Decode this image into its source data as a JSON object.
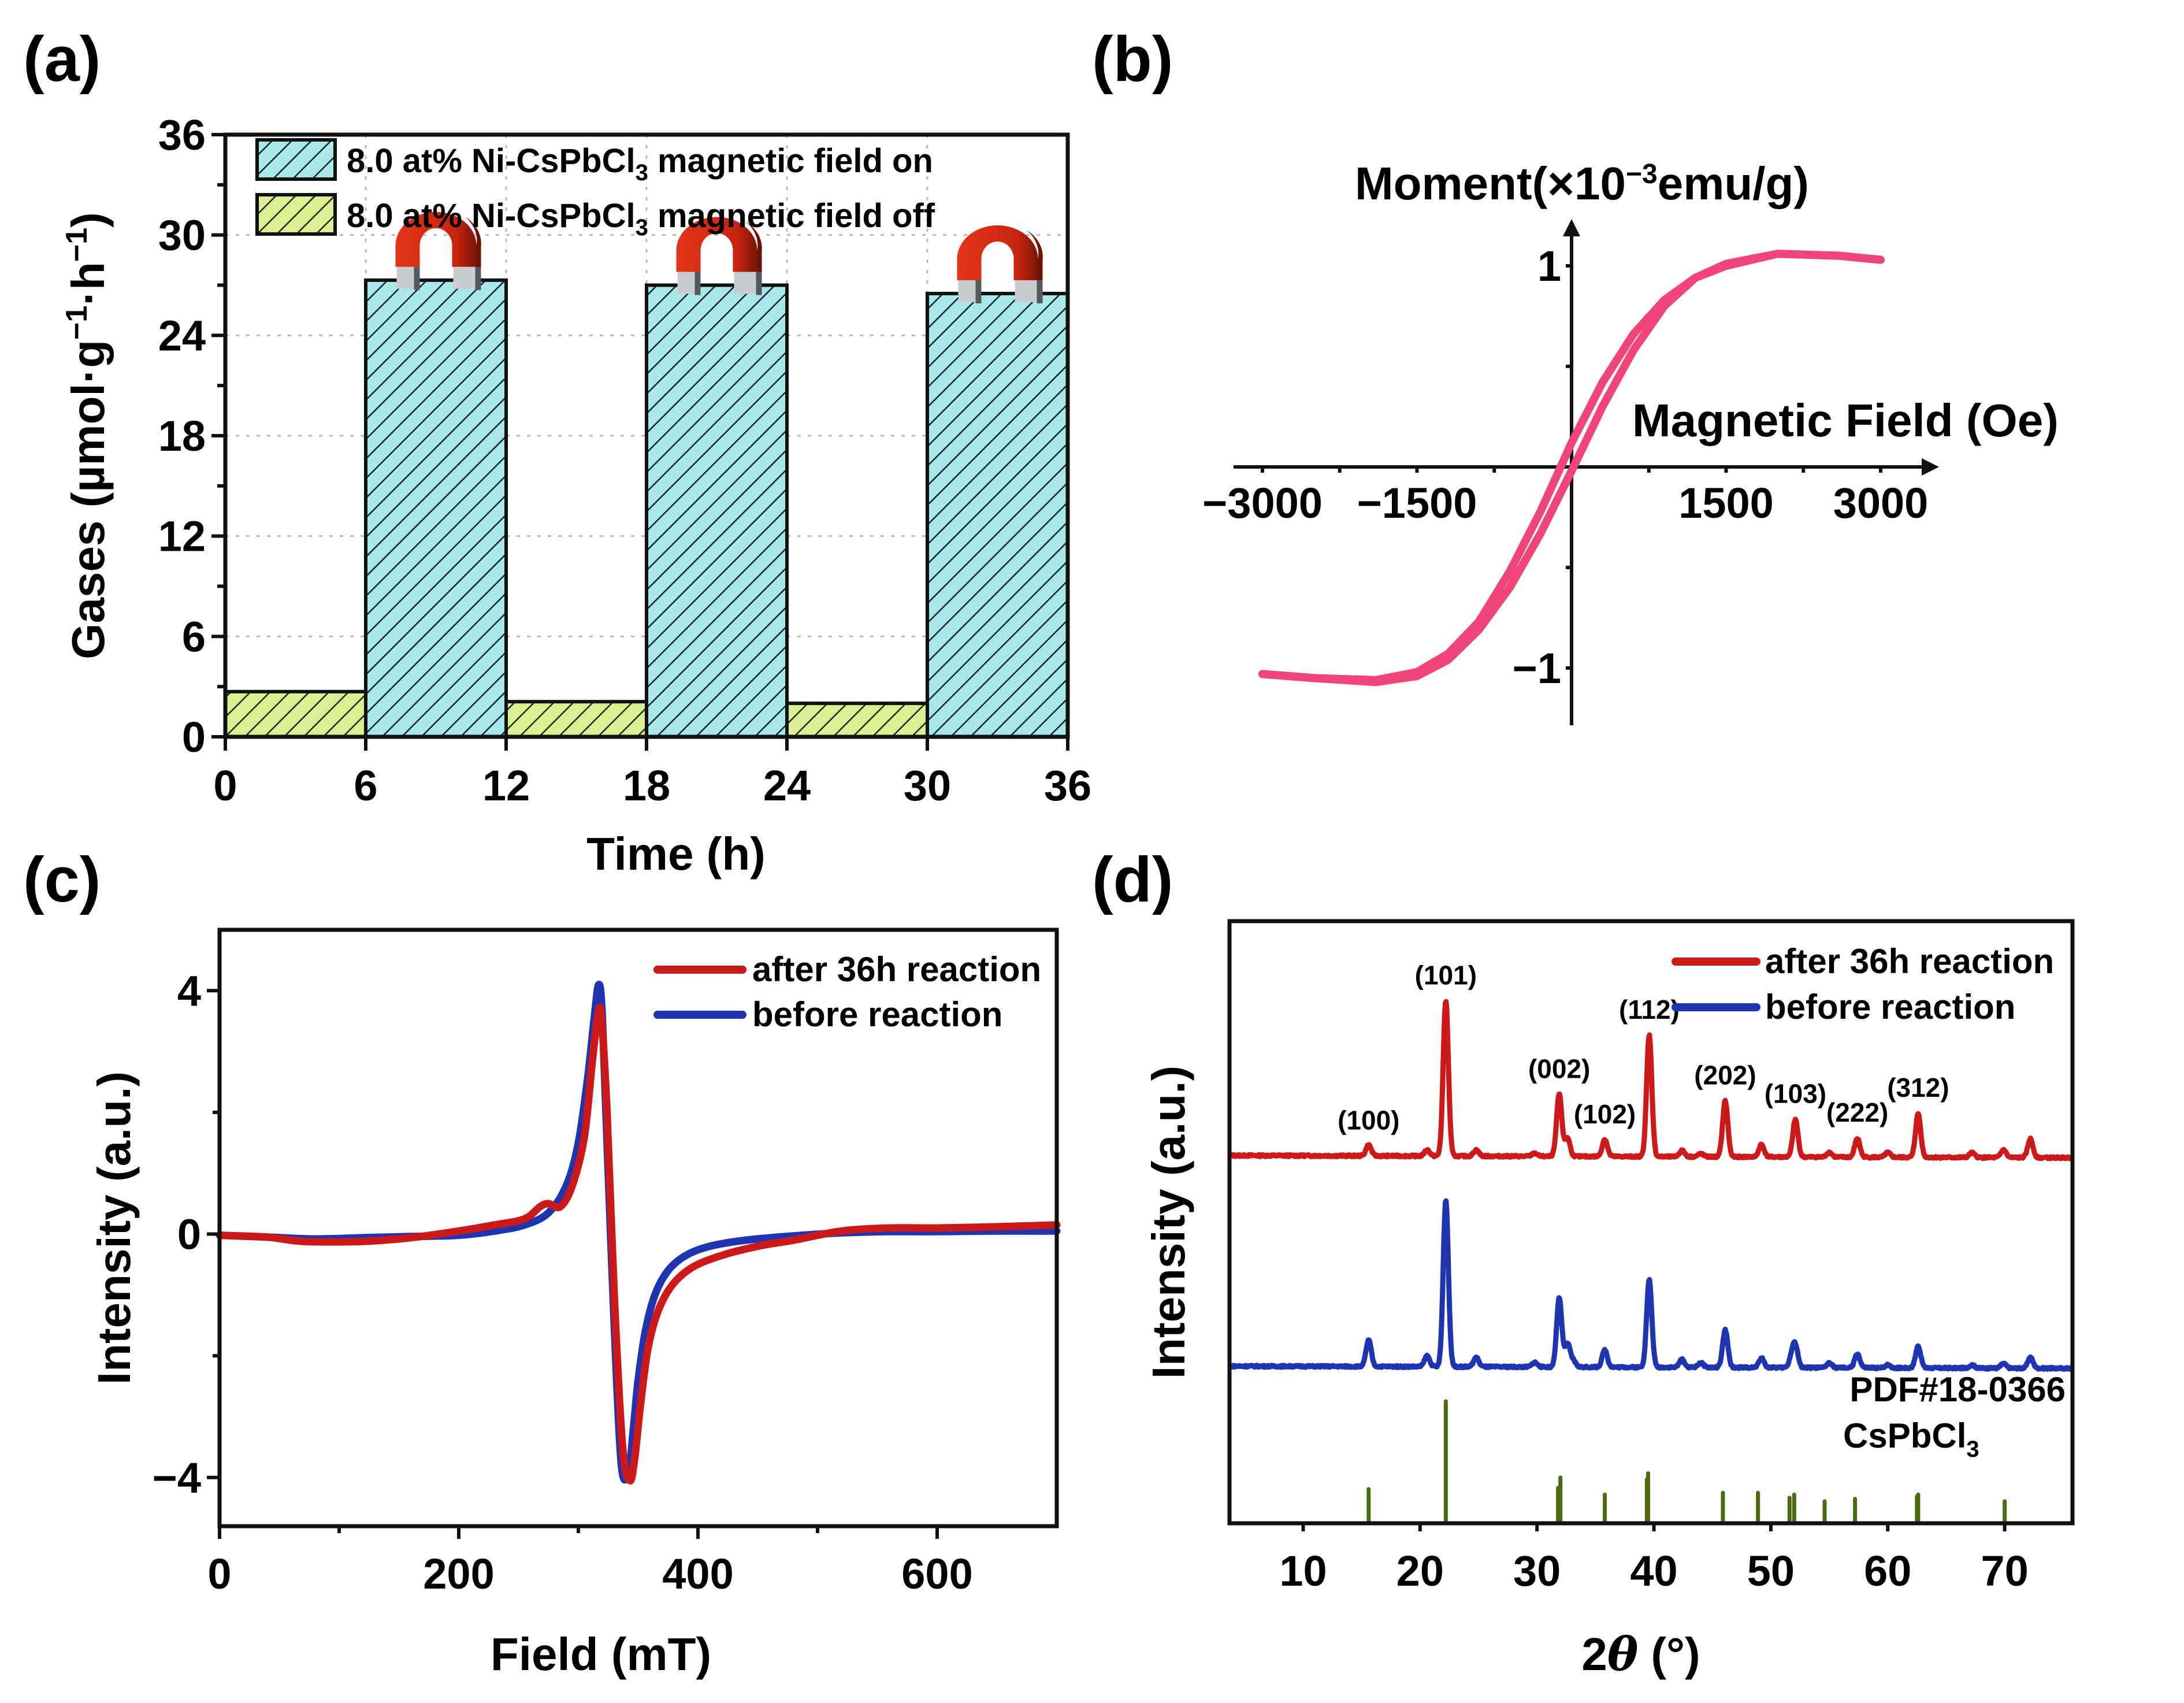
{
  "figure": {
    "panel_labels": [
      "(a)",
      "(b)",
      "(c)",
      "(d)"
    ]
  },
  "chart_data": [
    {
      "id": "a",
      "type": "bar",
      "title": "",
      "xlabel": "Time (h)",
      "ylabel_main": "Gases (µmol·g",
      "ylabel_sup1": "−1",
      "ylabel_mid": "·h",
      "ylabel_sup2": "−1",
      "ylabel_end": ")",
      "xlim": [
        0,
        36
      ],
      "ylim": [
        0,
        36
      ],
      "xticks": [
        "0",
        "6",
        "12",
        "18",
        "24",
        "30",
        "36"
      ],
      "xtick_values": [
        0,
        6,
        12,
        18,
        24,
        30,
        36
      ],
      "yticks": [
        "0",
        "6",
        "12",
        "18",
        "24",
        "30",
        "36"
      ],
      "ytick_values": [
        0,
        6,
        12,
        18,
        24,
        30,
        36
      ],
      "grid": true,
      "legend_position": "top-left",
      "series": [
        {
          "name": "8.0 at% Ni-CsPbCl3 magnetic field on",
          "legend_prefix": "8.0 at% Ni-CsPbCl",
          "legend_sub": "3",
          "legend_suffix": " magnetic field on",
          "color": "#9fe3e3",
          "pattern": "hatch",
          "bars": [
            {
              "x_start": 6,
              "x_end": 12,
              "value": 27.3
            },
            {
              "x_start": 18,
              "x_end": 24,
              "value": 27.0
            },
            {
              "x_start": 30,
              "x_end": 36,
              "value": 26.5
            }
          ]
        },
        {
          "name": "8.0 at% Ni-CsPbCl3 magnetic field off",
          "legend_prefix": "8.0 at% Ni-CsPbCl",
          "legend_sub": "3",
          "legend_suffix": " magnetic field off",
          "color": "#d8ef8a",
          "pattern": "hatch",
          "bars": [
            {
              "x_start": 0,
              "x_end": 6,
              "value": 2.7
            },
            {
              "x_start": 12,
              "x_end": 18,
              "value": 2.1
            },
            {
              "x_start": 24,
              "x_end": 30,
              "value": 2.0
            }
          ]
        }
      ],
      "annotations": [
        {
          "type": "magnet-icon",
          "over_bar": 0
        },
        {
          "type": "magnet-icon",
          "over_bar": 1
        },
        {
          "type": "magnet-icon",
          "over_bar": 2
        }
      ]
    },
    {
      "id": "b",
      "type": "line",
      "title": "",
      "xlabel": "Magnetic Field (Oe)",
      "ylabel_main": "Moment(×10",
      "ylabel_sup": "−3",
      "ylabel_end": "emu/g)",
      "xlim": [
        -3000,
        3000
      ],
      "ylim": [
        -1,
        1
      ],
      "xticks": [
        "−3000",
        "−1500",
        "1500",
        "3000"
      ],
      "xtick_values": [
        -3000,
        -1500,
        1500,
        3000
      ],
      "yticks": [
        "1",
        "−1"
      ],
      "ytick_values": [
        1,
        -1
      ],
      "grid": false,
      "axes_style": "centered-arrows",
      "series": [
        {
          "name": "descending branch",
          "color": "#f0457a",
          "x": [
            3000,
            2600,
            2000,
            1500,
            1200,
            900,
            600,
            300,
            0,
            -300,
            -600,
            -900,
            -1200,
            -1500,
            -1900,
            -2500,
            -3000
          ],
          "y": [
            1.03,
            1.05,
            1.06,
            1.0,
            0.94,
            0.83,
            0.66,
            0.42,
            0.12,
            -0.22,
            -0.52,
            -0.77,
            -0.93,
            -1.02,
            -1.06,
            -1.05,
            -1.03
          ]
        },
        {
          "name": "ascending branch",
          "color": "#f0457a",
          "x": [
            -3000,
            -2500,
            -1900,
            -1500,
            -1200,
            -900,
            -600,
            -300,
            0,
            300,
            600,
            900,
            1200,
            1500,
            2000,
            2600,
            3000
          ],
          "y": [
            -1.03,
            -1.05,
            -1.07,
            -1.04,
            -0.96,
            -0.81,
            -0.6,
            -0.33,
            -0.02,
            0.3,
            0.58,
            0.8,
            0.94,
            1.01,
            1.06,
            1.05,
            1.03
          ]
        }
      ]
    },
    {
      "id": "c",
      "type": "line",
      "title": "",
      "xlabel": "Field (mT)",
      "ylabel": "Intensity (a.u.)",
      "xlim": [
        0,
        700
      ],
      "ylim": [
        -4.8,
        5
      ],
      "xticks": [
        "0",
        "200",
        "400",
        "600"
      ],
      "xtick_values": [
        0,
        200,
        400,
        600
      ],
      "yticks": [
        "4",
        "0",
        "−4"
      ],
      "ytick_values": [
        4,
        0,
        -4
      ],
      "grid": false,
      "legend_position": "top-right",
      "series": [
        {
          "name": "before reaction",
          "color": "#1f35b0",
          "x": [
            0,
            40,
            80,
            120,
            160,
            200,
            230,
            255,
            275,
            290,
            300,
            308,
            313,
            317,
            320,
            324,
            330,
            336,
            342,
            346,
            350,
            356,
            364,
            375,
            390,
            410,
            440,
            480,
            520,
            560,
            600,
            650,
            700
          ],
          "y": [
            -0.02,
            -0.05,
            -0.08,
            -0.06,
            -0.04,
            -0.02,
            0.05,
            0.15,
            0.35,
            0.8,
            1.5,
            2.6,
            3.5,
            4.1,
            3.6,
            1.5,
            -1.5,
            -3.8,
            -3.9,
            -3.2,
            -2.4,
            -1.6,
            -1.0,
            -0.6,
            -0.35,
            -0.2,
            -0.1,
            -0.03,
            0.02,
            0.04,
            0.04,
            0.05,
            0.05
          ]
        },
        {
          "name": "after 36h reaction",
          "color": "#cc1a1a",
          "x": [
            0,
            40,
            70,
            120,
            160,
            200,
            230,
            255,
            268,
            275,
            285,
            295,
            305,
            312,
            316,
            319,
            324,
            330,
            337,
            343,
            347,
            352,
            358,
            366,
            378,
            395,
            420,
            450,
            480,
            520,
            560,
            600,
            650,
            700
          ],
          "y": [
            -0.02,
            -0.05,
            -0.12,
            -0.12,
            -0.06,
            0.05,
            0.15,
            0.25,
            0.45,
            0.5,
            0.45,
            0.8,
            1.6,
            2.9,
            3.55,
            3.6,
            2.0,
            -1.0,
            -3.5,
            -4.05,
            -3.7,
            -2.8,
            -1.9,
            -1.3,
            -0.85,
            -0.55,
            -0.35,
            -0.2,
            -0.1,
            0.05,
            0.1,
            0.1,
            0.12,
            0.15
          ]
        }
      ]
    },
    {
      "id": "d",
      "type": "line",
      "title": "",
      "xlabel_pre": "2",
      "xlabel_theta": "θ",
      "xlabel_post": " (°)",
      "ylabel": "Intensity (a.u.)",
      "xlim": [
        3.7,
        75.8
      ],
      "xticks": [
        "10",
        "20",
        "30",
        "40",
        "50",
        "60",
        "70"
      ],
      "xtick_values": [
        10,
        20,
        30,
        40,
        50,
        60,
        70
      ],
      "yticks": [],
      "grid": false,
      "legend_position": "top-right",
      "series": [
        {
          "name": "after 36h reaction",
          "color": "#cc1a1a",
          "offset": 2.35,
          "peaks": [
            [
              15.6,
              0.07
            ],
            [
              20.6,
              0.04
            ],
            [
              22.2,
              1.0
            ],
            [
              24.8,
              0.04
            ],
            [
              29.8,
              0.02
            ],
            [
              31.9,
              0.4
            ],
            [
              32.6,
              0.12
            ],
            [
              35.8,
              0.11
            ],
            [
              39.6,
              0.78
            ],
            [
              42.4,
              0.04
            ],
            [
              44.0,
              0.02
            ],
            [
              46.1,
              0.36
            ],
            [
              49.2,
              0.08
            ],
            [
              52.1,
              0.24
            ],
            [
              55.0,
              0.03
            ],
            [
              57.4,
              0.12
            ],
            [
              60.0,
              0.03
            ],
            [
              62.6,
              0.28
            ],
            [
              67.2,
              0.03
            ],
            [
              69.9,
              0.05
            ],
            [
              72.2,
              0.12
            ]
          ]
        },
        {
          "name": "before reaction",
          "color": "#1f35b0",
          "offset": 1.0,
          "peaks": [
            [
              15.6,
              0.17
            ],
            [
              20.6,
              0.07
            ],
            [
              22.2,
              1.07
            ],
            [
              24.8,
              0.06
            ],
            [
              29.8,
              0.03
            ],
            [
              31.9,
              0.44
            ],
            [
              32.6,
              0.15
            ],
            [
              33.1,
              0.04
            ],
            [
              35.8,
              0.11
            ],
            [
              39.6,
              0.56
            ],
            [
              42.4,
              0.05
            ],
            [
              44.0,
              0.03
            ],
            [
              46.1,
              0.24
            ],
            [
              49.2,
              0.06
            ],
            [
              51.8,
              0.07
            ],
            [
              52.1,
              0.13
            ],
            [
              55.0,
              0.03
            ],
            [
              57.4,
              0.09
            ],
            [
              60.0,
              0.02
            ],
            [
              62.6,
              0.14
            ],
            [
              67.2,
              0.02
            ],
            [
              69.9,
              0.03
            ],
            [
              72.2,
              0.07
            ]
          ]
        }
      ],
      "reference": {
        "name": "PDF#18-0366",
        "formula_prefix": "CsPbCl",
        "formula_sub": "3",
        "color": "#4a6b10",
        "sticks": [
          [
            15.6,
            0.28
          ],
          [
            22.2,
            1.0
          ],
          [
            31.8,
            0.29
          ],
          [
            32.0,
            0.375
          ],
          [
            35.8,
            0.235
          ],
          [
            39.4,
            0.36
          ],
          [
            39.5,
            0.41
          ],
          [
            45.9,
            0.25
          ],
          [
            48.9,
            0.25
          ],
          [
            51.6,
            0.21
          ],
          [
            52.0,
            0.235
          ],
          [
            54.6,
            0.18
          ],
          [
            57.2,
            0.2
          ],
          [
            62.5,
            0.22
          ],
          [
            62.6,
            0.235
          ],
          [
            70.0,
            0.18
          ]
        ]
      },
      "annotations": [
        {
          "label": "(100)",
          "x": 15.6
        },
        {
          "label": "(101)",
          "x": 22.2
        },
        {
          "label": "(002)",
          "x": 31.9
        },
        {
          "label": "(102)",
          "x": 35.8
        },
        {
          "label": "(112)",
          "x": 39.6
        },
        {
          "label": "(202)",
          "x": 46.1
        },
        {
          "label": "(103)",
          "x": 52.1
        },
        {
          "label": "(222)",
          "x": 57.4
        },
        {
          "label": "(312)",
          "x": 62.6
        }
      ]
    }
  ]
}
